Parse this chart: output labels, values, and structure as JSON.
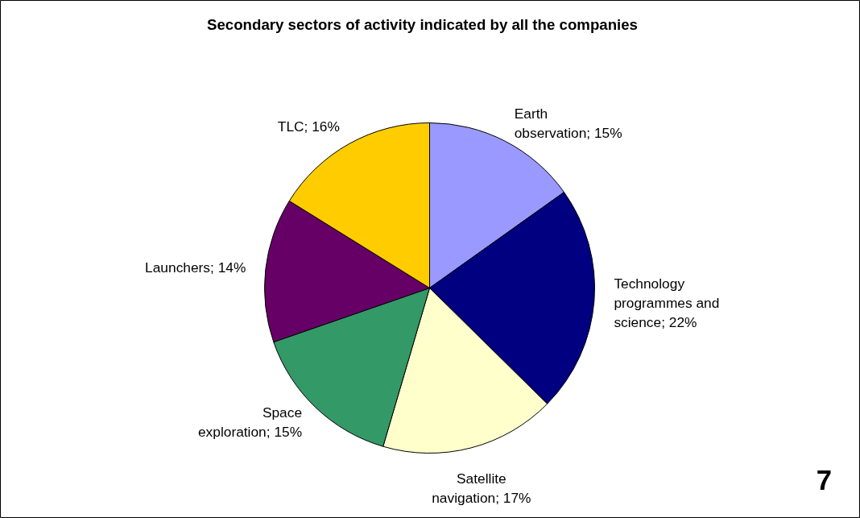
{
  "chart_data": {
    "type": "pie",
    "title": "Secondary sectors of activity indicated by all the companies",
    "categories": [
      "Earth observation",
      "Technology programmes and science",
      "Satellite navigation",
      "Space exploration",
      "Launchers",
      "TLC"
    ],
    "values": [
      15,
      22,
      17,
      15,
      14,
      16
    ],
    "value_labels": [
      "15%",
      "22%",
      "17%",
      "15%",
      "14%",
      "16%"
    ],
    "colors": [
      "#9999ff",
      "#000080",
      "#ffffcc",
      "#339966",
      "#660066",
      "#ffcc00"
    ],
    "annotations": [
      "7"
    ]
  }
}
